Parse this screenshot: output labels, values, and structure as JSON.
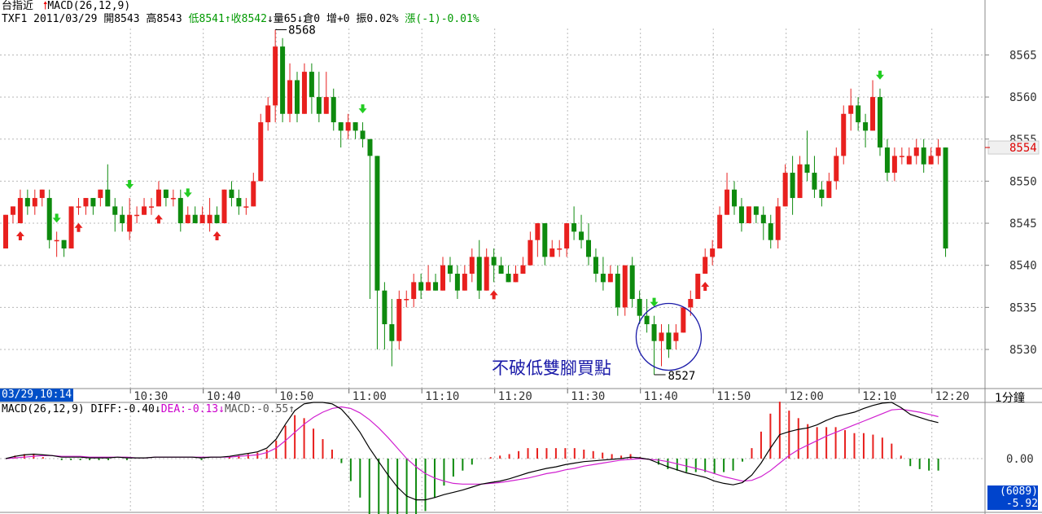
{
  "header": {
    "name": "台指近",
    "indicator": "MACD(26,12,9)",
    "symbol_date": "TXF1 2011/03/29",
    "open": "開8543",
    "high": "高8543",
    "low": "低8541",
    "close": "收8542",
    "volume": "量65",
    "oi": "倉0",
    "oi_change": "增+0",
    "amplitude": "振0.02%",
    "change": "漲(-1)-0.01%"
  },
  "cursor_time": "03/29,10:14",
  "period_label": "1分鐘",
  "price_axis": {
    "ticks": [
      "8565",
      "8560",
      "8555",
      "8550",
      "8545",
      "8540",
      "8535",
      "8530"
    ],
    "current_price": "8554"
  },
  "time_axis": {
    "ticks": [
      "10:30",
      "10:40",
      "10:50",
      "11:00",
      "11:10",
      "11:20",
      "11:30",
      "11:40",
      "11:50",
      "12:00",
      "12:10",
      "12:20"
    ]
  },
  "annotations": {
    "high_label": "8568",
    "low_label": "8527",
    "buy_note": "不破低雙腳買點"
  },
  "macd_panel": {
    "title": "MACD(26,12,9)",
    "diff": "DIFF:-0.40",
    "dea": "DEA:-0.13",
    "macd": "MACD:-0.55",
    "zero_label": "0.00",
    "box_count": "(6089)",
    "box_value": "-5.92"
  },
  "colors": {
    "up": "#e8201e",
    "down": "#0e8a0e",
    "diff_line": "#000000",
    "dea_line": "#d020d0",
    "grid": "#b8b8b8"
  },
  "chart_data": {
    "type": "candlestick",
    "interval": "1 minute",
    "start_time": "10:14",
    "candles": [
      [
        8542,
        8546,
        8542,
        8546
      ],
      [
        8546,
        8547,
        8545,
        8547
      ],
      [
        8545,
        8549,
        8545,
        8548
      ],
      [
        8548,
        8549,
        8546,
        8547
      ],
      [
        8547,
        8549,
        8546,
        8548
      ],
      [
        8548,
        8549,
        8547,
        8549
      ],
      [
        8548,
        8549,
        8542,
        8543
      ],
      [
        8543,
        8544,
        8541,
        8543
      ],
      [
        8543,
        8543,
        8541,
        8542
      ],
      [
        8542,
        8547,
        8542,
        8547
      ],
      [
        8547,
        8548,
        8546,
        8547
      ],
      [
        8547,
        8548,
        8546,
        8548
      ],
      [
        8548,
        8548,
        8546,
        8547
      ],
      [
        8548,
        8549,
        8547,
        8549
      ],
      [
        8549,
        8552,
        8547,
        8547
      ],
      [
        8547,
        8548,
        8544,
        8546
      ],
      [
        8546,
        8547,
        8544,
        8545
      ],
      [
        8544,
        8548,
        8543,
        8546
      ],
      [
        8546,
        8547,
        8545,
        8546
      ],
      [
        8546,
        8548,
        8546,
        8547
      ],
      [
        8547,
        8548,
        8546,
        8547
      ],
      [
        8547,
        8550,
        8547,
        8549
      ],
      [
        8549,
        8549,
        8547,
        8548
      ],
      [
        8548,
        8549,
        8547,
        8548
      ],
      [
        8548,
        8549,
        8544,
        8545
      ],
      [
        8545,
        8547,
        8545,
        8546
      ],
      [
        8546,
        8547,
        8545,
        8545
      ],
      [
        8545,
        8547,
        8545,
        8546
      ],
      [
        8545,
        8548,
        8544,
        8546
      ],
      [
        8546,
        8547,
        8545,
        8545
      ],
      [
        8545,
        8549,
        8545,
        8549
      ],
      [
        8549,
        8550,
        8547,
        8548
      ],
      [
        8548,
        8549,
        8546,
        8547
      ],
      [
        8547,
        8548,
        8546,
        8547
      ],
      [
        8547,
        8551,
        8547,
        8550
      ],
      [
        8550,
        8558,
        8550,
        8557
      ],
      [
        8557,
        8560,
        8556,
        8559
      ],
      [
        8559,
        8568,
        8557,
        8566
      ],
      [
        8566,
        8567,
        8557,
        8558
      ],
      [
        8558,
        8564,
        8557,
        8562
      ],
      [
        8562,
        8563,
        8557,
        8558
      ],
      [
        8558,
        8564,
        8558,
        8563
      ],
      [
        8563,
        8564,
        8558,
        8560
      ],
      [
        8560,
        8563,
        8557,
        8558
      ],
      [
        8558,
        8563,
        8558,
        8560
      ],
      [
        8560,
        8561,
        8556,
        8557
      ],
      [
        8557,
        8557,
        8554,
        8556
      ],
      [
        8556,
        8558,
        8555,
        8557
      ],
      [
        8557,
        8557,
        8555,
        8556
      ],
      [
        8556,
        8557,
        8554,
        8555
      ],
      [
        8555,
        8555,
        8536,
        8553
      ],
      [
        8553,
        8553,
        8530,
        8537
      ],
      [
        8537,
        8538,
        8530,
        8533
      ],
      [
        8533,
        8536,
        8528,
        8531
      ],
      [
        8531,
        8537,
        8530,
        8536
      ],
      [
        8536,
        8537,
        8535,
        8536
      ],
      [
        8536,
        8539,
        8535,
        8538
      ],
      [
        8538,
        8539,
        8536,
        8537
      ],
      [
        8537,
        8540,
        8537,
        8538
      ],
      [
        8538,
        8539,
        8537,
        8537
      ],
      [
        8537,
        8541,
        8537,
        8540
      ],
      [
        8540,
        8541,
        8538,
        8539
      ],
      [
        8539,
        8540,
        8536,
        8537
      ],
      [
        8537,
        8540,
        8537,
        8539
      ],
      [
        8539,
        8542,
        8538,
        8541
      ],
      [
        8541,
        8543,
        8536,
        8537
      ],
      [
        8537,
        8542,
        8537,
        8541
      ],
      [
        8541,
        8542,
        8538,
        8540
      ],
      [
        8540,
        8541,
        8539,
        8539
      ],
      [
        8539,
        8540,
        8538,
        8538
      ],
      [
        8538,
        8540,
        8538,
        8539
      ],
      [
        8539,
        8541,
        8539,
        8540
      ],
      [
        8540,
        8544,
        8540,
        8543
      ],
      [
        8543,
        8545,
        8541,
        8545
      ],
      [
        8545,
        8545,
        8540,
        8541
      ],
      [
        8541,
        8543,
        8541,
        8542
      ],
      [
        8542,
        8543,
        8541,
        8542
      ],
      [
        8542,
        8545,
        8541,
        8545
      ],
      [
        8545,
        8547,
        8543,
        8544
      ],
      [
        8544,
        8546,
        8542,
        8543
      ],
      [
        8543,
        8545,
        8540,
        8541
      ],
      [
        8541,
        8542,
        8538,
        8539
      ],
      [
        8539,
        8541,
        8537,
        8538
      ],
      [
        8538,
        8540,
        8538,
        8539
      ],
      [
        8539,
        8540,
        8534,
        8535
      ],
      [
        8535,
        8540,
        8534,
        8540
      ],
      [
        8540,
        8541,
        8535,
        8536
      ],
      [
        8536,
        8537,
        8533,
        8534
      ],
      [
        8534,
        8536,
        8532,
        8533
      ],
      [
        8533,
        8534,
        8527,
        8531
      ],
      [
        8531,
        8533,
        8528,
        8532
      ],
      [
        8532,
        8533,
        8529,
        8530
      ],
      [
        8531,
        8533,
        8530,
        8532
      ],
      [
        8532,
        8535,
        8532,
        8535
      ],
      [
        8535,
        8537,
        8534,
        8536
      ],
      [
        8536,
        8539,
        8536,
        8539
      ],
      [
        8539,
        8542,
        8539,
        8541
      ],
      [
        8541,
        8543,
        8540,
        8542
      ],
      [
        8542,
        8547,
        8542,
        8546
      ],
      [
        8546,
        8551,
        8546,
        8549
      ],
      [
        8549,
        8550,
        8546,
        8547
      ],
      [
        8547,
        8548,
        8544,
        8545
      ],
      [
        8545,
        8547,
        8545,
        8547
      ],
      [
        8547,
        8547,
        8545,
        8546
      ],
      [
        8546,
        8547,
        8543,
        8545
      ],
      [
        8545,
        8546,
        8542,
        8543
      ],
      [
        8543,
        8548,
        8542,
        8547
      ],
      [
        8547,
        8552,
        8547,
        8551
      ],
      [
        8551,
        8553,
        8546,
        8548
      ],
      [
        8548,
        8553,
        8548,
        8552
      ],
      [
        8552,
        8556,
        8550,
        8551
      ],
      [
        8551,
        8553,
        8548,
        8549
      ],
      [
        8549,
        8550,
        8547,
        8548
      ],
      [
        8548,
        8551,
        8548,
        8550
      ],
      [
        8550,
        8554,
        8549,
        8553
      ],
      [
        8553,
        8559,
        8552,
        8558
      ],
      [
        8558,
        8561,
        8556,
        8559
      ],
      [
        8559,
        8560,
        8556,
        8557
      ],
      [
        8557,
        8558,
        8554,
        8556
      ],
      [
        8556,
        8562,
        8556,
        8560
      ],
      [
        8560,
        8561,
        8553,
        8554
      ],
      [
        8554,
        8555,
        8550,
        8551
      ],
      [
        8551,
        8554,
        8550,
        8553
      ],
      [
        8553,
        8554,
        8552,
        8553
      ],
      [
        8552,
        8554,
        8552,
        8553
      ],
      [
        8553,
        8555,
        8552,
        8554
      ],
      [
        8554,
        8555,
        8551,
        8552
      ],
      [
        8552,
        8554,
        8552,
        8553
      ],
      [
        8553,
        8555,
        8552,
        8554
      ],
      [
        8554,
        8554,
        8541,
        8542
      ]
    ],
    "markers": [
      {
        "i": 2,
        "dir": "up"
      },
      {
        "i": 7,
        "dir": "down"
      },
      {
        "i": 10,
        "dir": "up"
      },
      {
        "i": 17,
        "dir": "down"
      },
      {
        "i": 21,
        "dir": "up"
      },
      {
        "i": 25,
        "dir": "down"
      },
      {
        "i": 29,
        "dir": "up"
      },
      {
        "i": 49,
        "dir": "down"
      },
      {
        "i": 67,
        "dir": "up"
      },
      {
        "i": 89,
        "dir": "down"
      },
      {
        "i": 96,
        "dir": "up"
      },
      {
        "i": 120,
        "dir": "down"
      }
    ],
    "macd": {
      "diff": [
        0.0,
        0.3,
        0.5,
        0.6,
        0.5,
        0.4,
        0.2,
        0.2,
        0.2,
        0.1,
        0.1,
        0.1,
        0.2,
        0.1,
        0.1,
        0.1,
        0.2,
        0.2,
        0.2,
        0.2,
        0.2,
        0.1,
        0.2,
        0.2,
        0.3,
        0.5,
        0.7,
        0.9,
        1.4,
        2.6,
        4.6,
        6.4,
        7.3,
        7.5,
        7.5,
        7.3,
        6.6,
        5.2,
        3.5,
        1.4,
        -0.4,
        -2.2,
        -3.8,
        -5.0,
        -5.5,
        -5.5,
        -5.2,
        -4.8,
        -4.5,
        -4.2,
        -3.8,
        -3.4,
        -3.2,
        -3.0,
        -2.7,
        -2.3,
        -1.9,
        -1.6,
        -1.3,
        -1.1,
        -0.8,
        -0.6,
        -0.4,
        -0.3,
        -0.2,
        -0.1,
        0.0,
        0.2,
        0.1,
        -0.1,
        -0.6,
        -1.1,
        -1.5,
        -1.9,
        -2.2,
        -2.5,
        -3.0,
        -3.3,
        -3.5,
        -3.2,
        -2.2,
        -0.6,
        1.4,
        3.2,
        3.6,
        3.9,
        4.1,
        4.5,
        5.1,
        5.6,
        5.9,
        6.2,
        6.7,
        7.1,
        7.4,
        7.5,
        6.8,
        5.9,
        5.5,
        5.1,
        4.8
      ],
      "dea": [
        0.0,
        0.1,
        0.2,
        0.3,
        0.4,
        0.4,
        0.3,
        0.3,
        0.3,
        0.2,
        0.2,
        0.2,
        0.2,
        0.2,
        0.1,
        0.1,
        0.2,
        0.2,
        0.2,
        0.2,
        0.2,
        0.2,
        0.2,
        0.2,
        0.2,
        0.3,
        0.4,
        0.5,
        0.8,
        1.4,
        2.4,
        3.5,
        4.6,
        5.5,
        6.2,
        6.7,
        6.9,
        6.7,
        6.1,
        5.2,
        4.1,
        2.8,
        1.4,
        0.0,
        -1.1,
        -2.0,
        -2.6,
        -3.0,
        -3.3,
        -3.4,
        -3.4,
        -3.4,
        -3.3,
        -3.2,
        -3.0,
        -2.8,
        -2.6,
        -2.3,
        -2.0,
        -1.8,
        -1.5,
        -1.3,
        -1.0,
        -0.8,
        -0.6,
        -0.4,
        -0.2,
        -0.1,
        0.0,
        -0.1,
        -0.2,
        -0.4,
        -0.7,
        -1.0,
        -1.3,
        -1.6,
        -2.0,
        -2.4,
        -2.7,
        -3.0,
        -2.9,
        -2.4,
        -1.6,
        -0.6,
        0.4,
        1.2,
        1.8,
        2.4,
        3.0,
        3.5,
        4.0,
        4.5,
        5.0,
        5.5,
        6.0,
        6.5,
        6.6,
        6.4,
        6.2,
        5.9,
        5.6
      ],
      "histogram_note": "MACD = 2*(DIFF-DEA)"
    }
  }
}
